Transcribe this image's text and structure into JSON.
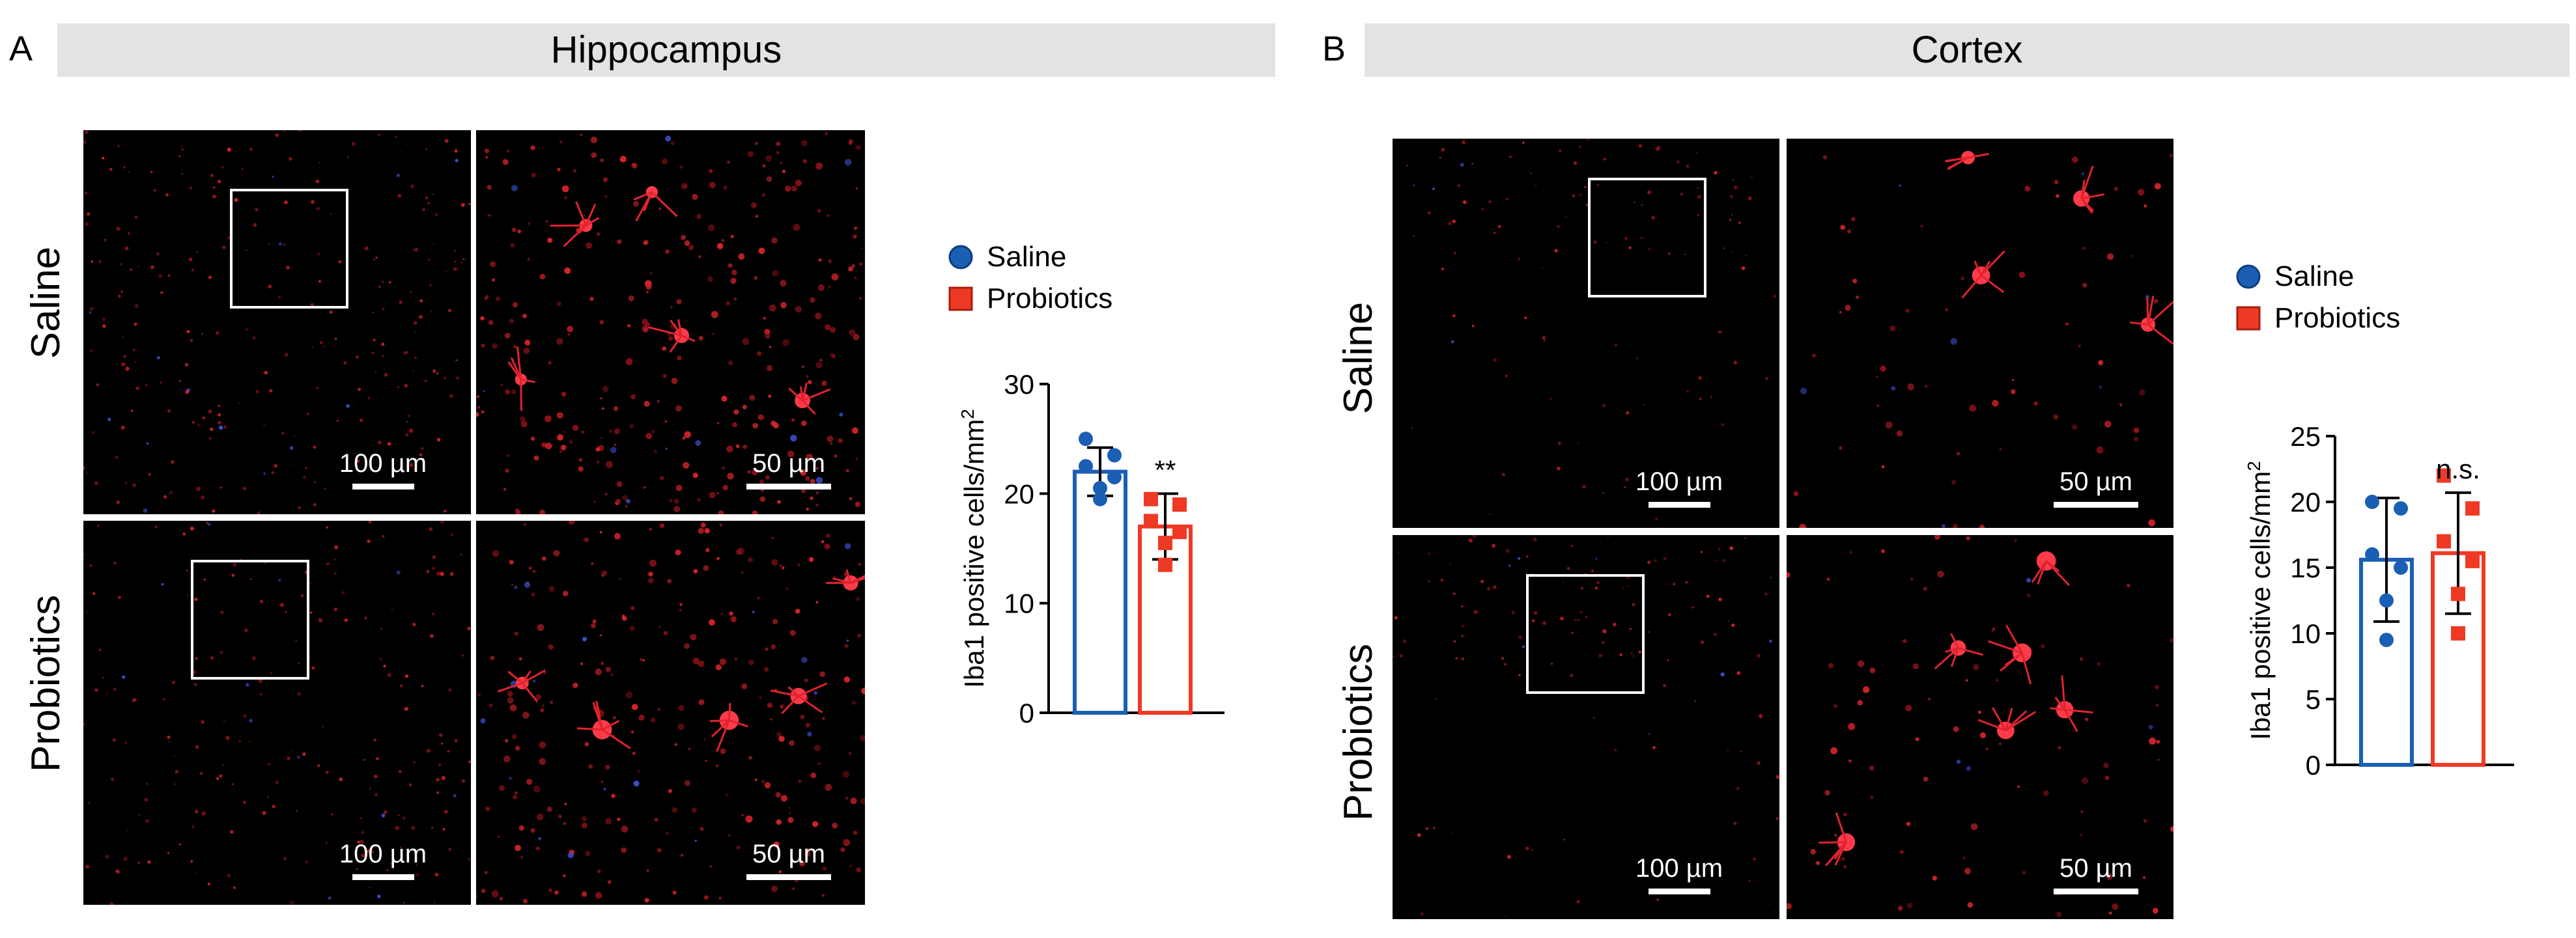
{
  "colors": {
    "saline": "#1a5fb4",
    "probiotics": "#ee3a24",
    "banner_bg": "#e3e3e3"
  },
  "panel_a": {
    "letter": "A",
    "title": "Hippocampus",
    "rows": [
      "Saline",
      "Probiotics"
    ],
    "scalebars": [
      "100 µm",
      "50 µm",
      "100 µm",
      "50 µm"
    ],
    "legend": [
      "Saline",
      "Probiotics"
    ],
    "significance": "**"
  },
  "panel_b": {
    "letter": "B",
    "title": "Cortex",
    "rows": [
      "Saline",
      "Probiotics"
    ],
    "scalebars": [
      "100 µm",
      "50 µm",
      "100 µm",
      "50 µm"
    ],
    "legend": [
      "Saline",
      "Probiotics"
    ],
    "significance": "n.s."
  },
  "chart_data": [
    {
      "type": "bar",
      "panel": "A",
      "ylabel": "Iba1 positive cells/mm",
      "ylabel_sup": "2",
      "ylim": [
        0,
        30
      ],
      "yticks": [
        0,
        10,
        20,
        30
      ],
      "categories": [
        "Saline",
        "Probiotics"
      ],
      "values": [
        22,
        17
      ],
      "sd": [
        2.2,
        3.0
      ],
      "points": [
        [
          25,
          23.5,
          22.5,
          21.5,
          20.5,
          19.5
        ],
        [
          19.5,
          19,
          17.5,
          16.5,
          15.5,
          13.5
        ]
      ],
      "annotation": "**"
    },
    {
      "type": "bar",
      "panel": "B",
      "ylabel": "Iba1 positive cells/mm",
      "ylabel_sup": "2",
      "ylim": [
        0,
        25
      ],
      "yticks": [
        0,
        5,
        10,
        15,
        20,
        25
      ],
      "categories": [
        "Saline",
        "Probiotics"
      ],
      "values": [
        15.6,
        16.1
      ],
      "sd": [
        4.7,
        4.6
      ],
      "points": [
        [
          20,
          19.5,
          16,
          15,
          12.5,
          9.5
        ],
        [
          22,
          19.5,
          17,
          15.5,
          13,
          10
        ]
      ],
      "annotation": "n.s."
    }
  ]
}
